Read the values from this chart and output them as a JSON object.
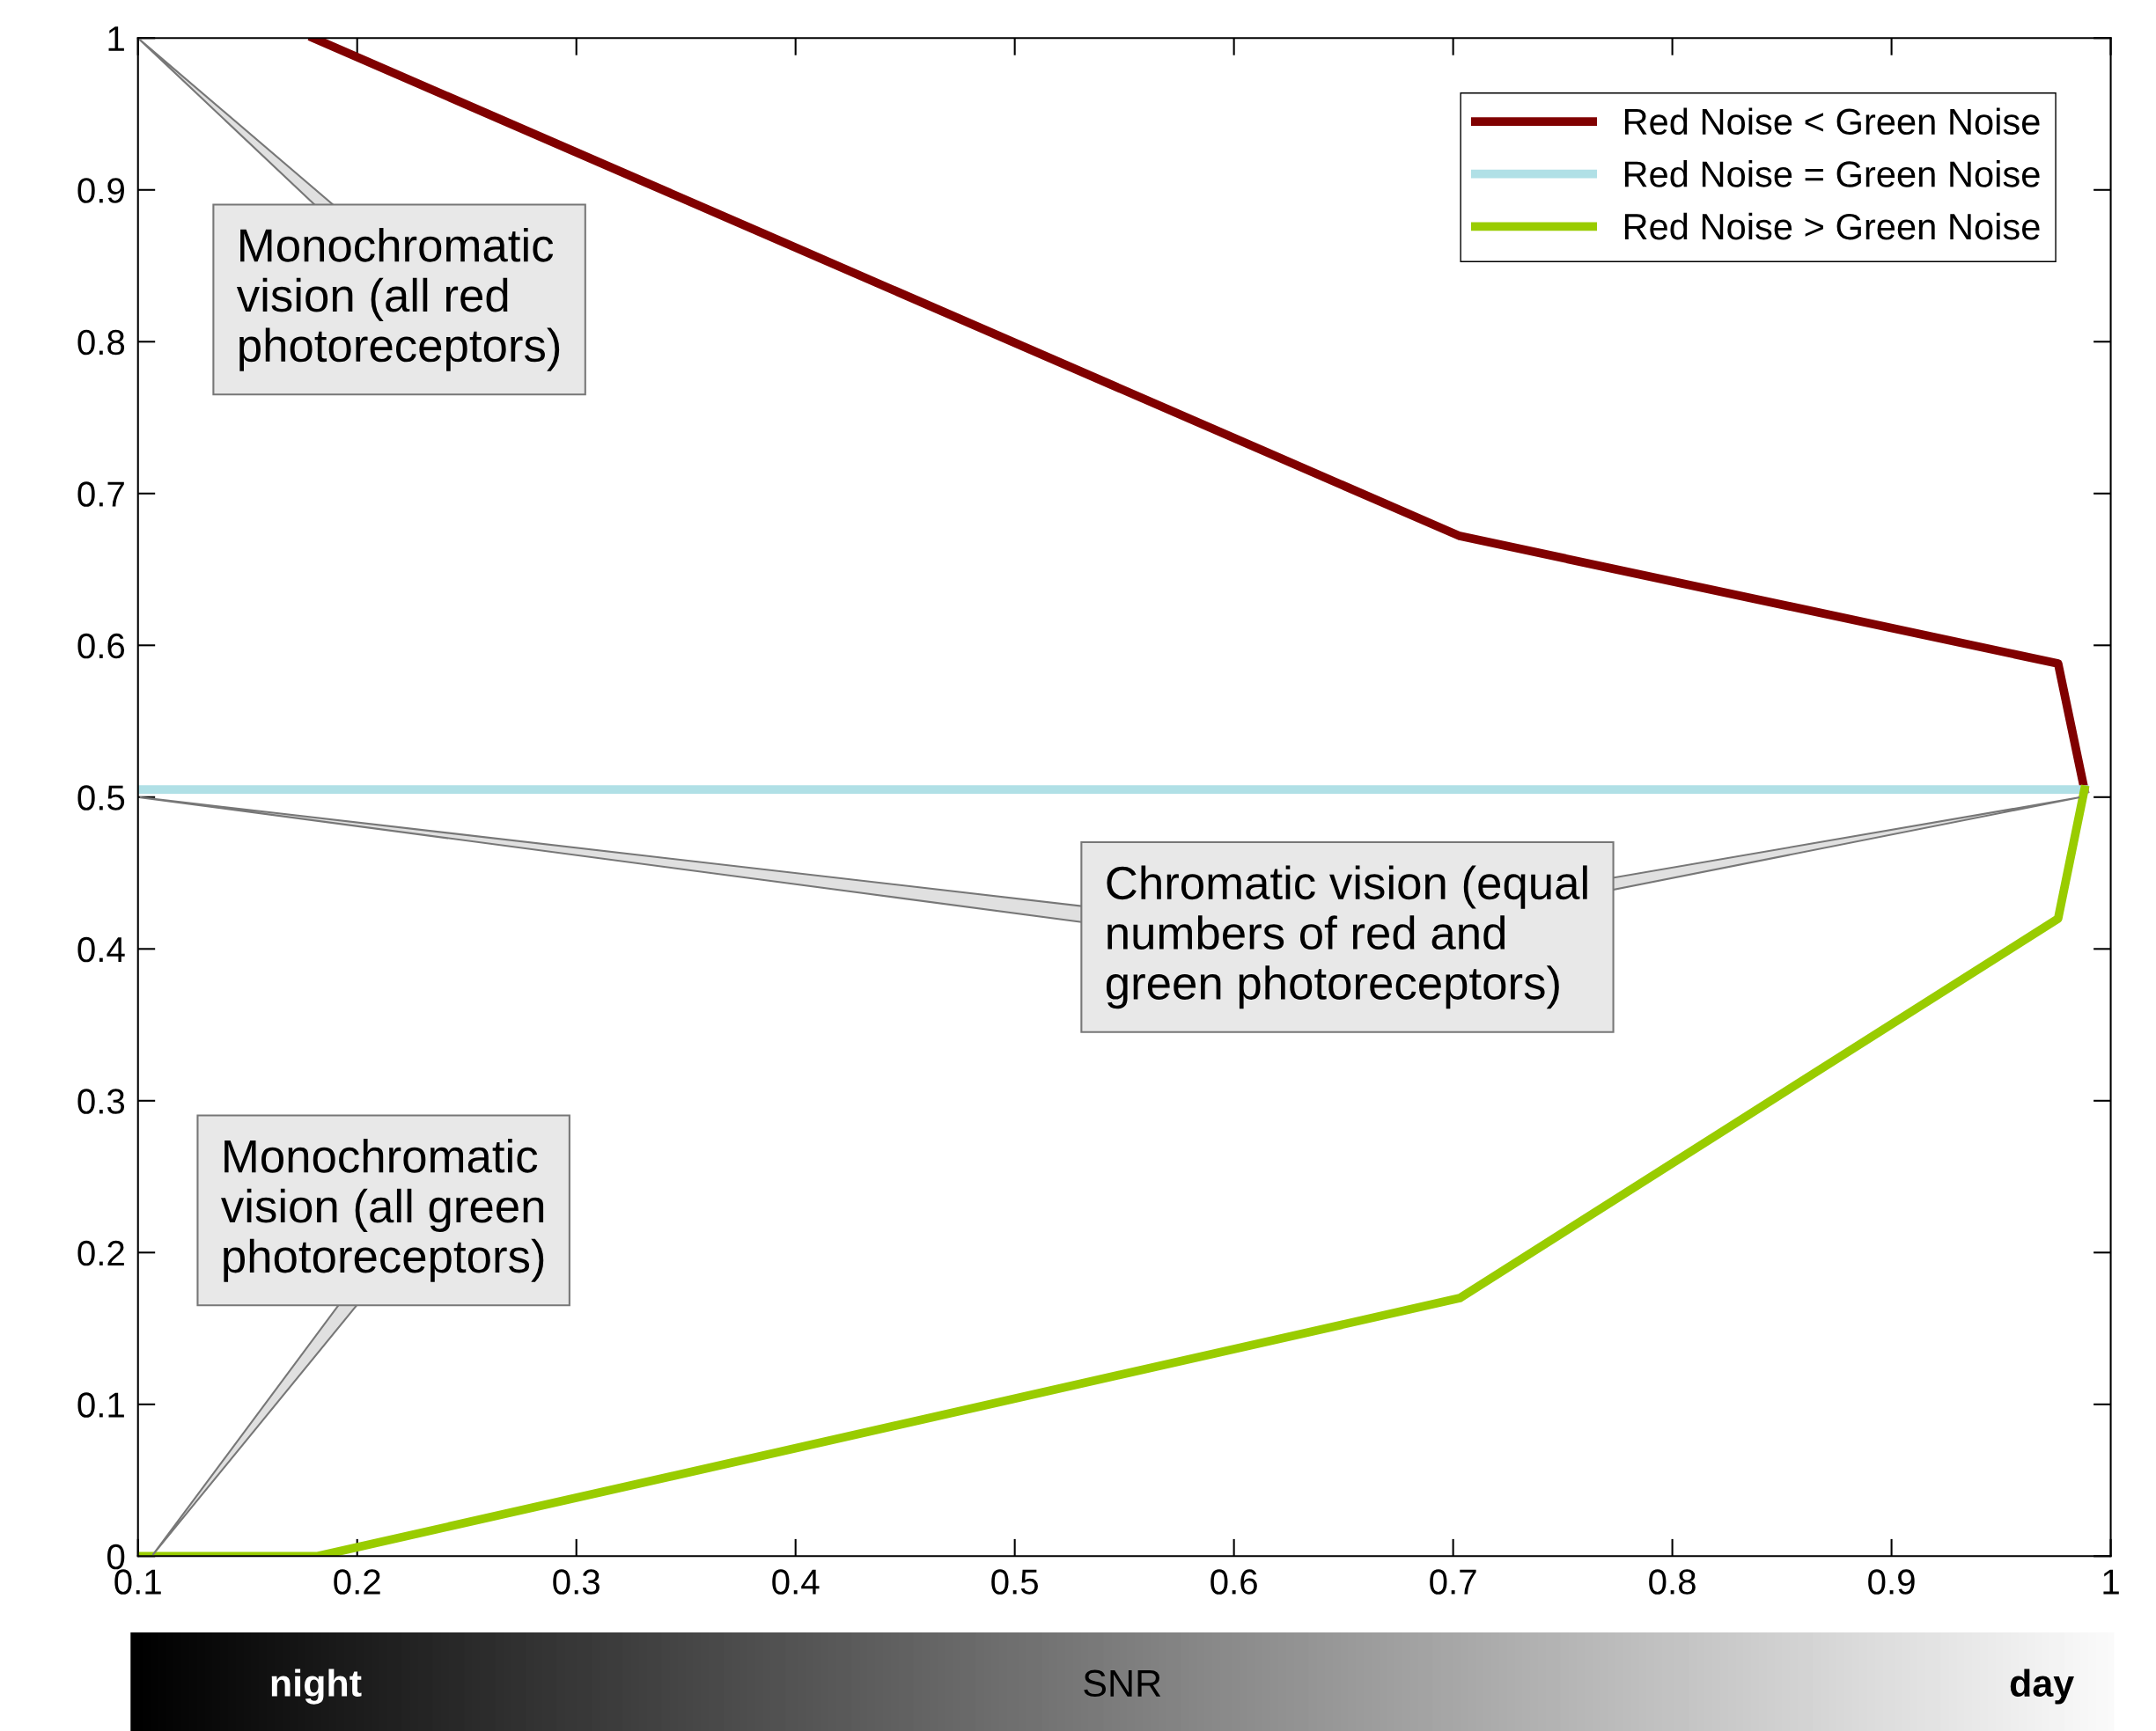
{
  "chart_data": {
    "type": "line",
    "xlabel": "SNR",
    "xlim": [
      0.1,
      1
    ],
    "ylim": [
      0,
      1
    ],
    "xticks": [
      0.1,
      0.2,
      0.3,
      0.4,
      0.5,
      0.6,
      0.7,
      0.8,
      0.9,
      1
    ],
    "yticks": [
      0,
      0.1,
      0.2,
      0.3,
      0.4,
      0.5,
      0.6,
      0.7,
      0.8,
      0.9,
      1
    ],
    "grid": false,
    "legend": "top right",
    "line_style": "solid",
    "marker": "none",
    "series": [
      {
        "name": "Red Noise < Green Noise",
        "color": "#800000",
        "x": [
          0.18,
          0.703,
          0.976,
          0.988
        ],
        "values": [
          1.0,
          0.672,
          0.588,
          0.505
        ]
      },
      {
        "name": "Red Noise = Green Noise",
        "color": "#b0e0e6",
        "x": [
          0.1,
          0.988
        ],
        "values": [
          0.505,
          0.505
        ]
      },
      {
        "name": "Red Noise > Green Noise",
        "color": "#99cc00",
        "x": [
          0.1,
          0.182,
          0.703,
          0.976,
          0.988
        ],
        "values": [
          0,
          0,
          0.17,
          0.42,
          0.505
        ]
      }
    ],
    "annotations": [
      "Monochromatic\nvision (all red\nphotoreceptors)",
      "Chromatic vision (equal\nnumbers of red and\ngreen photoreceptors)",
      "Monochromatic\nvision (all green\nphotoreceptors)",
      "night",
      "day"
    ]
  }
}
